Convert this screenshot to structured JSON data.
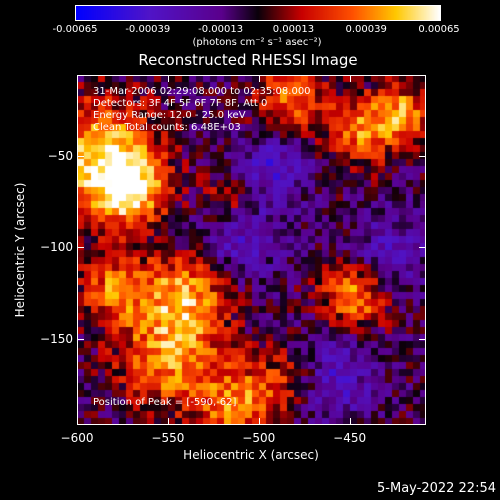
{
  "colorbar": {
    "ticks": [
      "-0.00065",
      "-0.00039",
      "-0.00013",
      "0.00013",
      "0.00039",
      "0.00065"
    ],
    "units": "(photons cm⁻² s⁻¹ asec⁻²)"
  },
  "title": "Reconstructed RHESSI Image",
  "info": {
    "time_range": "31-Mar-2006 02:29:08.000 to 02:35:08.000",
    "detectors": "Detectors: 3F 4F 5F 6F 7F 8F, Att 0",
    "energy": "Energy Range: 12.0 - 25.0 keV",
    "clean": "Clean     Total counts: 6.48E+03"
  },
  "peak": "Position of Peak = [-590,-62]",
  "timestamp": "5-May-2022 22:54",
  "chart_data": {
    "type": "heatmap",
    "title": "Reconstructed RHESSI Image",
    "xlabel": "Heliocentric X (arcsec)",
    "ylabel": "Heliocentric Y (arcsec)",
    "xlim": [
      -600,
      -408
    ],
    "ylim": [
      -197,
      -6
    ],
    "x_ticks": [
      "-600",
      "-550",
      "-500",
      "-450"
    ],
    "y_ticks": [
      "-50",
      "-100",
      "-150"
    ],
    "color_range": [
      -0.00065,
      0.00065
    ],
    "colormap": "blue-purple-red-yellow-white",
    "peak_position": [
      -590,
      -62
    ]
  }
}
